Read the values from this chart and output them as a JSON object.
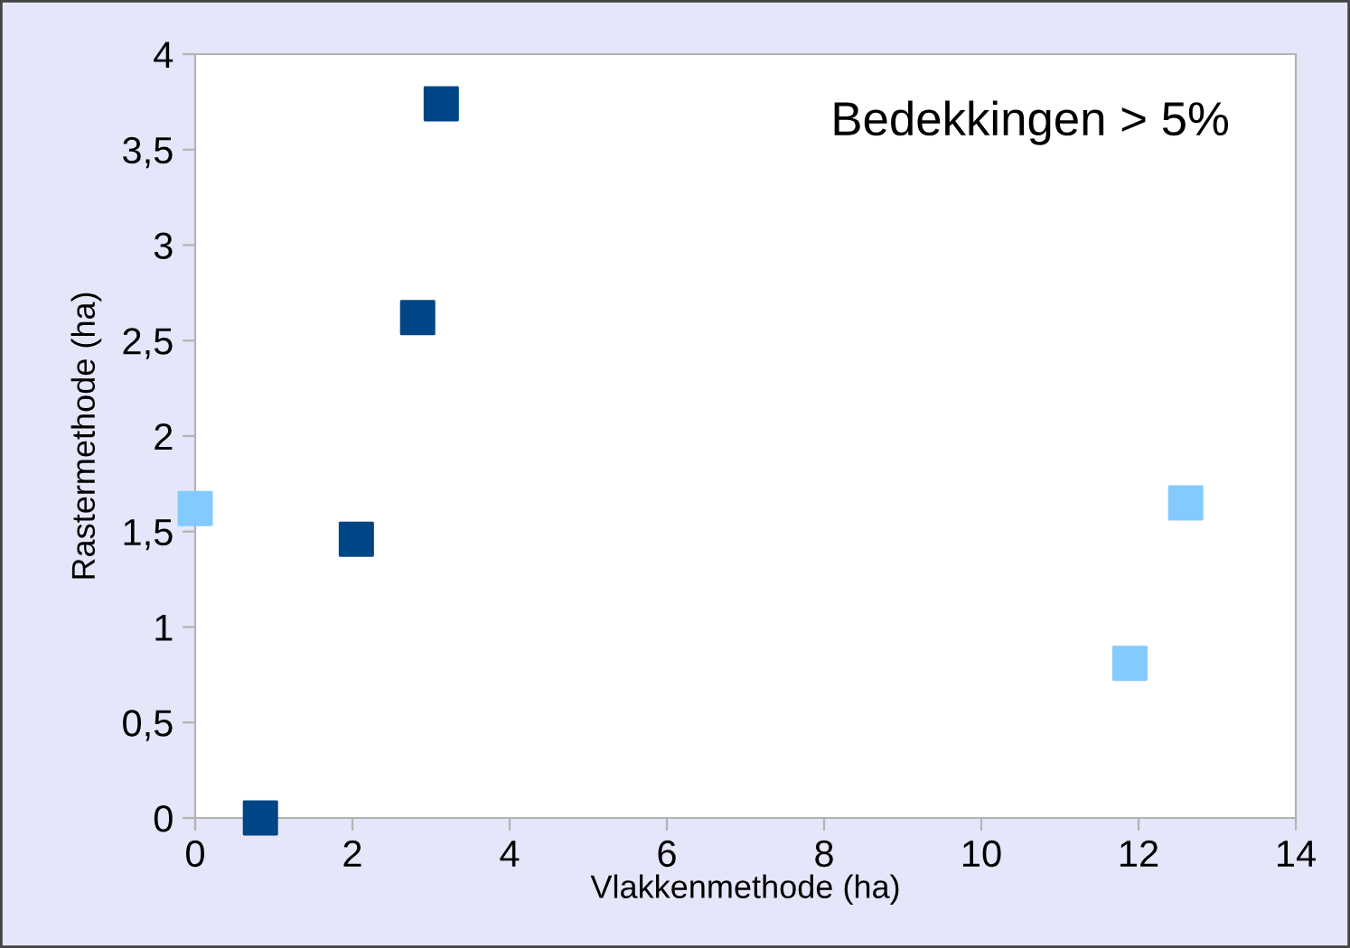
{
  "chart_data": {
    "type": "scatter",
    "xlabel": "Vlakkenmethode (ha)",
    "ylabel": "Rastermethode (ha)",
    "annotations": [
      "Bedekkingen > 5%"
    ],
    "series": [
      {
        "color": "#004586",
        "x": [
          0.83,
          2.05,
          2.83,
          3.13
        ],
        "values": [
          0,
          1.46,
          2.62,
          3.74
        ]
      },
      {
        "color": "#83caff",
        "x": [
          0,
          11.89,
          12.6
        ],
        "values": [
          1.62,
          0.81,
          1.65
        ]
      }
    ],
    "xlim": [
      0,
      14
    ],
    "xticks": [
      0,
      2,
      4,
      6,
      8,
      10,
      12,
      14
    ],
    "ylim": [
      0,
      4
    ],
    "yticks": [
      0,
      {
        "value": 0.5,
        "label": "0,5"
      },
      1,
      {
        "value": 1.5,
        "label": "1,5"
      },
      2,
      {
        "value": 2.5,
        "label": "2,5"
      },
      3,
      {
        "value": 3.5,
        "label": "3,5"
      },
      4
    ],
    "marker": "square",
    "grid": false,
    "legend": false
  }
}
